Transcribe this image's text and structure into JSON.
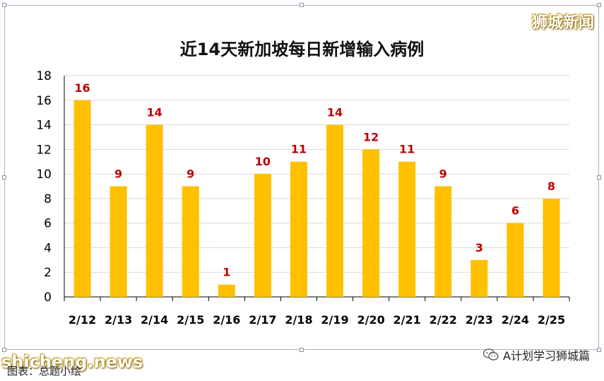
{
  "brand_top": "狮城新闻",
  "caption": "图表：总题小绘",
  "watermark_left": "shicheng.news",
  "wechat_account": "A计划学习狮城篇",
  "colors": {
    "bar": "#FFC000",
    "label": "#C00000",
    "axis": "#000000",
    "grid": "#D9D9D9"
  },
  "chart_data": {
    "type": "bar",
    "title": "近14天新加坡每日新增输入病例",
    "categories": [
      "2/12",
      "2/13",
      "2/14",
      "2/15",
      "2/16",
      "2/17",
      "2/18",
      "2/19",
      "2/20",
      "2/21",
      "2/22",
      "2/23",
      "2/24",
      "2/25"
    ],
    "values": [
      16,
      9,
      14,
      9,
      1,
      10,
      11,
      14,
      12,
      11,
      9,
      3,
      6,
      8
    ],
    "ylim": [
      0,
      18
    ],
    "yticks": [
      0,
      2,
      4,
      6,
      8,
      10,
      12,
      14,
      16,
      18
    ],
    "xlabel": "",
    "ylabel": "",
    "grid": true,
    "data_labels": true
  }
}
